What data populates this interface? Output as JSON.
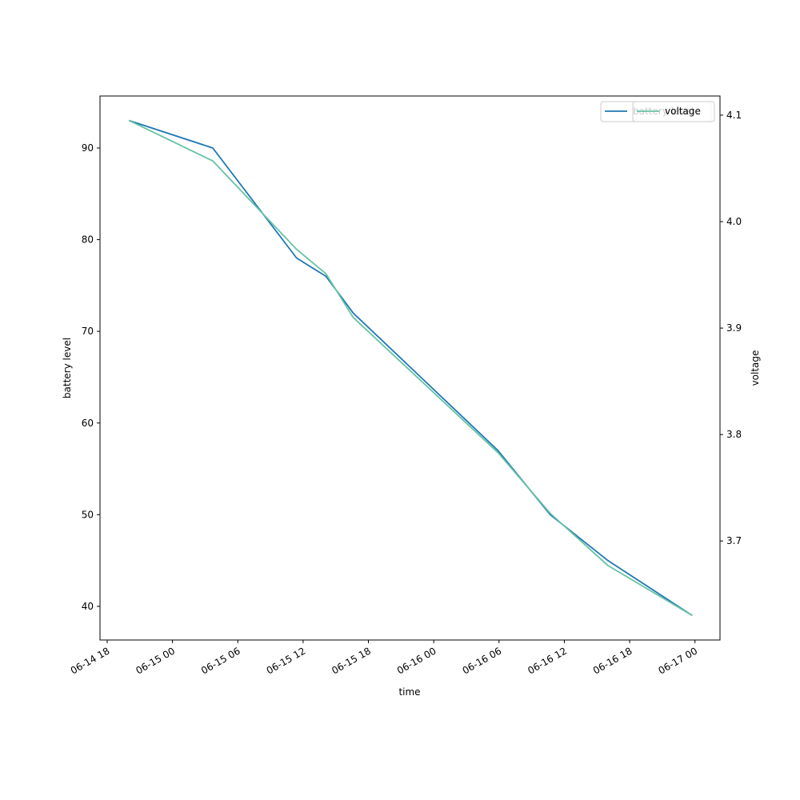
{
  "chart_data": {
    "type": "line",
    "x_label": "time",
    "y_label": "battery level",
    "y2_label": "voltage",
    "x": [
      20,
      27.7,
      35.4,
      38.1,
      40.6,
      53.9,
      58.7,
      64.0,
      71.75
    ],
    "series": [
      {
        "name": "battery level",
        "color": "#1f77b4",
        "values": [
          93,
          90,
          78,
          76,
          72,
          57,
          50,
          45,
          39
        ]
      },
      {
        "name": "voltage",
        "color": "#66c2a5",
        "axis": "y2",
        "values": [
          4.095,
          4.057,
          3.974,
          3.951,
          3.91,
          3.783,
          3.726,
          3.677,
          3.63
        ]
      }
    ],
    "xlim": [
      17.34,
      74.3
    ],
    "xticks": [
      {
        "value": 18,
        "label": "06-14 18"
      },
      {
        "value": 24,
        "label": "06-15 00"
      },
      {
        "value": 30,
        "label": "06-15 06"
      },
      {
        "value": 36,
        "label": "06-15 12"
      },
      {
        "value": 42,
        "label": "06-15 18"
      },
      {
        "value": 48,
        "label": "06-16 00"
      },
      {
        "value": 54,
        "label": "06-16 06"
      },
      {
        "value": 60,
        "label": "06-16 12"
      },
      {
        "value": 66,
        "label": "06-16 18"
      },
      {
        "value": 72,
        "label": "06-17 00"
      }
    ],
    "ylim": [
      36.33,
      95.67
    ],
    "yticks": [
      40,
      50,
      60,
      70,
      80,
      90
    ],
    "y2lim": [
      3.607,
      4.118
    ],
    "y2ticks": [
      3.7,
      3.8,
      3.9,
      {
        "value": 4.0,
        "label": "4.0"
      },
      4.1
    ],
    "legend": "upper right"
  }
}
